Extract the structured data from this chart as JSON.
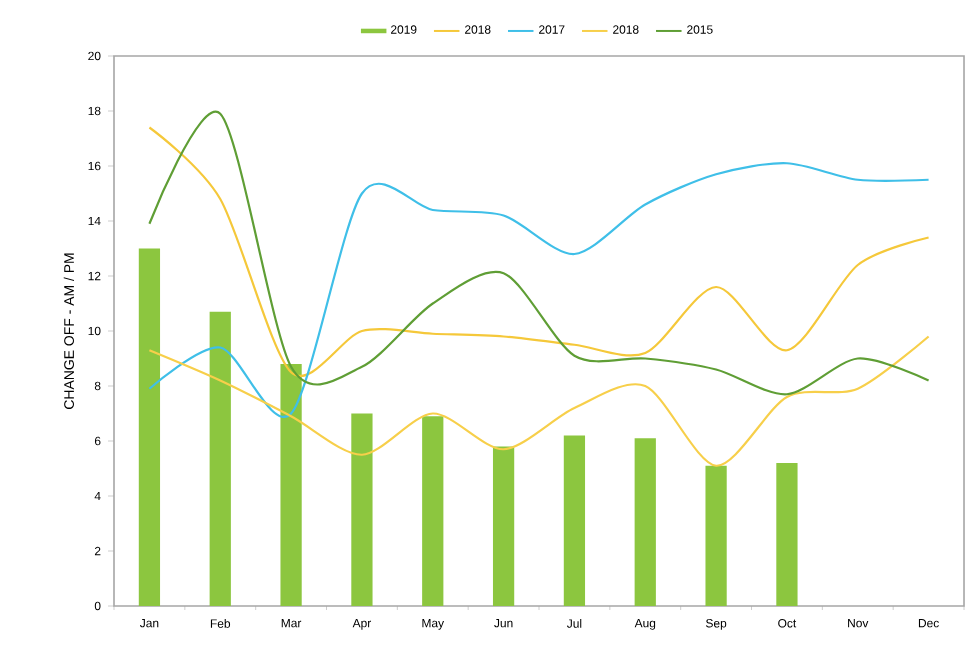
{
  "chart_data": {
    "type": "bar",
    "ylabel": "CHANGE OFF - AM / PM",
    "categories": [
      "Jan",
      "Feb",
      "Mar",
      "Apr",
      "May",
      "Jun",
      "Jul",
      "Aug",
      "Sep",
      "Oct",
      "Nov",
      "Dec"
    ],
    "series": [
      {
        "name": "2019",
        "color": "#8cc63f",
        "values": [
          13.0,
          10.7,
          8.8,
          7.0,
          6.9,
          5.8,
          6.2,
          6.1,
          5.1,
          5.2,
          null,
          null
        ]
      },
      {
        "name": "2018",
        "type": "line",
        "color": "#f5c83a",
        "values": [
          17.4,
          14.8,
          8.5,
          10.0,
          9.9,
          9.8,
          9.5,
          9.2,
          11.6,
          9.3,
          12.4,
          13.4
        ]
      },
      {
        "name": "2017",
        "type": "line",
        "color": "#3fbfe8",
        "values": [
          7.9,
          9.4,
          7.0,
          15.0,
          14.4,
          14.2,
          12.8,
          14.6,
          15.7,
          16.1,
          15.5,
          15.5
        ]
      },
      {
        "name": "2018",
        "type": "line",
        "color": "#f7cf4a",
        "values": [
          9.3,
          8.2,
          6.9,
          5.5,
          7.0,
          5.7,
          7.2,
          8.0,
          5.1,
          7.6,
          7.9,
          9.8
        ]
      },
      {
        "name": "2015",
        "type": "line",
        "color": "#5f9e35",
        "values": [
          13.9,
          17.9,
          8.7,
          8.7,
          11.0,
          12.1,
          9.1,
          9.0,
          8.6,
          7.7,
          9.0,
          8.2
        ]
      }
    ],
    "ylim": [
      0,
      20
    ],
    "yticks": [
      0,
      2,
      4,
      6,
      8,
      10,
      12,
      14,
      16,
      18,
      20
    ],
    "legend": "top"
  }
}
